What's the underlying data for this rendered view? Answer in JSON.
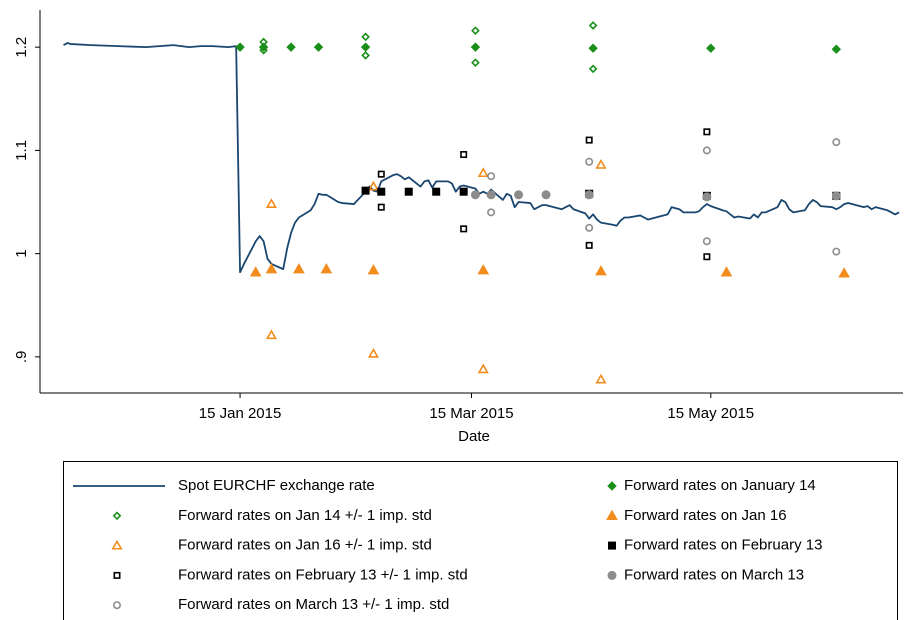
{
  "chart_data": {
    "type": "line",
    "x_label": "Date",
    "xlim": [
      "2014-11-25",
      "2015-07-03"
    ],
    "xticks": [
      {
        "value": "2015-01-15",
        "label": "15 Jan 2015"
      },
      {
        "value": "2015-03-15",
        "label": "15 Mar 2015"
      },
      {
        "value": "2015-05-15",
        "label": "15 May 2015"
      }
    ],
    "ylim": [
      0.865,
      1.236
    ],
    "yticks": [
      {
        "value": 0.9,
        "label": ".9"
      },
      1,
      1.1,
      1.2
    ],
    "series": [
      {
        "name": "Spot EURCHF exchange rate",
        "type": "line",
        "color": "#1a476f",
        "x": [
          "2014-12-01",
          "2014-12-02",
          "2014-12-03",
          "2014-12-08",
          "2014-12-15",
          "2014-12-22",
          "2014-12-29",
          "2015-01-02",
          "2015-01-05",
          "2015-01-08",
          "2015-01-12",
          "2015-01-14",
          "2015-01-15",
          "2015-01-16",
          "2015-01-19",
          "2015-01-20",
          "2015-01-21",
          "2015-01-22",
          "2015-01-23",
          "2015-01-26",
          "2015-01-27",
          "2015-01-28",
          "2015-01-29",
          "2015-01-30",
          "2015-02-02",
          "2015-02-03",
          "2015-02-04",
          "2015-02-05",
          "2015-02-06",
          "2015-02-09",
          "2015-02-10",
          "2015-02-13",
          "2015-02-16",
          "2015-02-17",
          "2015-02-18",
          "2015-02-19",
          "2015-02-20",
          "2015-02-23",
          "2015-02-24",
          "2015-02-25",
          "2015-02-26",
          "2015-02-27",
          "2015-03-02",
          "2015-03-03",
          "2015-03-04",
          "2015-03-05",
          "2015-03-06",
          "2015-03-09",
          "2015-03-10",
          "2015-03-11",
          "2015-03-12",
          "2015-03-13",
          "2015-03-16",
          "2015-03-17",
          "2015-03-18",
          "2015-03-19",
          "2015-03-20",
          "2015-03-23",
          "2015-03-24",
          "2015-03-25",
          "2015-03-26",
          "2015-03-27",
          "2015-03-30",
          "2015-03-31",
          "2015-04-01",
          "2015-04-02",
          "2015-04-03",
          "2015-04-07",
          "2015-04-08",
          "2015-04-09",
          "2015-04-10",
          "2015-04-13",
          "2015-04-14",
          "2015-04-15",
          "2015-04-16",
          "2015-04-17",
          "2015-04-20",
          "2015-04-21",
          "2015-04-22",
          "2015-04-23",
          "2015-04-24",
          "2015-04-27",
          "2015-04-28",
          "2015-04-29",
          "2015-04-30",
          "2015-05-04",
          "2015-05-05",
          "2015-05-06",
          "2015-05-07",
          "2015-05-08",
          "2015-05-11",
          "2015-05-12",
          "2015-05-13",
          "2015-05-14",
          "2015-05-15",
          "2015-05-18",
          "2015-05-19",
          "2015-05-20",
          "2015-05-21",
          "2015-05-22",
          "2015-05-25",
          "2015-05-26",
          "2015-05-27",
          "2015-05-28",
          "2015-05-29",
          "2015-06-01",
          "2015-06-02",
          "2015-06-03",
          "2015-06-04",
          "2015-06-05",
          "2015-06-08",
          "2015-06-09",
          "2015-06-10",
          "2015-06-11",
          "2015-06-12",
          "2015-06-15",
          "2015-06-16",
          "2015-06-17",
          "2015-06-18",
          "2015-06-19",
          "2015-06-22",
          "2015-06-23",
          "2015-06-24",
          "2015-06-25",
          "2015-06-26",
          "2015-06-29",
          "2015-06-30",
          "2015-07-01",
          "2015-07-02"
        ],
        "values": [
          1.202,
          1.204,
          1.203,
          1.202,
          1.201,
          1.2,
          1.202,
          1.2,
          1.201,
          1.201,
          1.2,
          1.201,
          0.982,
          0.99,
          1.012,
          1.017,
          1.012,
          0.995,
          0.99,
          0.985,
          1.005,
          1.02,
          1.03,
          1.035,
          1.042,
          1.048,
          1.058,
          1.057,
          1.057,
          1.05,
          1.049,
          1.048,
          1.06,
          1.065,
          1.061,
          1.06,
          1.07,
          1.076,
          1.077,
          1.075,
          1.072,
          1.074,
          1.065,
          1.07,
          1.071,
          1.064,
          1.07,
          1.07,
          1.068,
          1.06,
          1.065,
          1.066,
          1.063,
          1.058,
          1.06,
          1.058,
          1.062,
          1.052,
          1.058,
          1.056,
          1.045,
          1.05,
          1.049,
          1.043,
          1.045,
          1.047,
          1.047,
          1.043,
          1.045,
          1.047,
          1.043,
          1.039,
          1.034,
          1.038,
          1.033,
          1.03,
          1.028,
          1.027,
          1.032,
          1.035,
          1.035,
          1.037,
          1.035,
          1.033,
          1.034,
          1.038,
          1.045,
          1.044,
          1.043,
          1.04,
          1.04,
          1.041,
          1.045,
          1.048,
          1.046,
          1.042,
          1.041,
          1.038,
          1.035,
          1.036,
          1.034,
          1.038,
          1.035,
          1.04,
          1.04,
          1.045,
          1.052,
          1.05,
          1.043,
          1.04,
          1.042,
          1.048,
          1.052,
          1.05,
          1.046,
          1.045,
          1.043,
          1.045,
          1.048,
          1.049,
          1.046,
          1.045,
          1.046,
          1.043,
          1.045,
          1.042,
          1.04,
          1.038,
          1.04
        ]
      },
      {
        "name": "Forward rates on January 14",
        "type": "scatter",
        "marker": "diamond",
        "filled": true,
        "color": "#1a8f1a",
        "x": [
          "2015-01-15",
          "2015-01-21",
          "2015-01-28",
          "2015-02-04",
          "2015-02-16",
          "2015-03-16",
          "2015-04-15",
          "2015-05-15",
          "2015-06-16"
        ],
        "values": [
          1.2,
          1.2,
          1.2,
          1.2,
          1.2,
          1.2,
          1.199,
          1.199,
          1.198
        ]
      },
      {
        "name": "Forward rates on Jan 14 +/- 1 imp. std",
        "type": "scatter",
        "marker": "diamond",
        "filled": false,
        "color": "#1a8f1a",
        "x": [
          "2015-01-21",
          "2015-01-21",
          "2015-02-16",
          "2015-02-16",
          "2015-03-16",
          "2015-03-16",
          "2015-04-15",
          "2015-04-15"
        ],
        "values": [
          1.205,
          1.197,
          1.21,
          1.192,
          1.216,
          1.185,
          1.221,
          1.179
        ]
      },
      {
        "name": "Forward rates on Jan 16",
        "type": "scatter",
        "marker": "triangle",
        "filled": true,
        "color": "#f28c1c",
        "x": [
          "2015-01-19",
          "2015-01-23",
          "2015-01-30",
          "2015-02-06",
          "2015-02-18",
          "2015-03-18",
          "2015-04-17",
          "2015-05-19",
          "2015-06-18"
        ],
        "values": [
          0.982,
          0.985,
          0.985,
          0.985,
          0.984,
          0.984,
          0.983,
          0.982,
          0.981
        ]
      },
      {
        "name": "Forward rates on Jan 16 +/- 1 imp. std",
        "type": "scatter",
        "marker": "triangle",
        "filled": false,
        "color": "#f28c1c",
        "x": [
          "2015-01-23",
          "2015-01-23",
          "2015-02-18",
          "2015-02-18",
          "2015-03-18",
          "2015-03-18",
          "2015-04-17",
          "2015-04-17"
        ],
        "values": [
          1.048,
          0.921,
          1.065,
          0.903,
          1.078,
          0.888,
          1.086,
          0.878
        ]
      },
      {
        "name": "Forward rates on February 13",
        "type": "scatter",
        "marker": "square",
        "filled": true,
        "color": "#000000",
        "x": [
          "2015-02-16",
          "2015-02-20",
          "2015-02-27",
          "2015-03-06",
          "2015-03-13",
          "2015-04-14",
          "2015-05-14",
          "2015-06-16"
        ],
        "values": [
          1.061,
          1.06,
          1.06,
          1.06,
          1.06,
          1.058,
          1.056,
          1.056
        ]
      },
      {
        "name": "Forward rates on February 13 +/- 1 imp. std",
        "type": "scatter",
        "marker": "square",
        "filled": false,
        "color": "#000000",
        "x": [
          "2015-02-20",
          "2015-02-20",
          "2015-03-13",
          "2015-03-13",
          "2015-04-14",
          "2015-04-14",
          "2015-05-14",
          "2015-05-14"
        ],
        "values": [
          1.077,
          1.045,
          1.096,
          1.024,
          1.11,
          1.008,
          1.118,
          0.997
        ]
      },
      {
        "name": "Forward rates on March 13",
        "type": "scatter",
        "marker": "circle",
        "filled": true,
        "color": "#8c8c8c",
        "x": [
          "2015-03-16",
          "2015-03-20",
          "2015-03-27",
          "2015-04-03",
          "2015-04-14",
          "2015-05-14",
          "2015-06-16"
        ],
        "values": [
          1.057,
          1.057,
          1.057,
          1.057,
          1.057,
          1.055,
          1.056
        ]
      },
      {
        "name": "Forward rates on March 13 +/- 1 imp. std",
        "type": "scatter",
        "marker": "circle",
        "filled": false,
        "color": "#8c8c8c",
        "x": [
          "2015-03-20",
          "2015-03-20",
          "2015-04-14",
          "2015-04-14",
          "2015-05-14",
          "2015-05-14",
          "2015-06-16",
          "2015-06-16"
        ],
        "values": [
          1.075,
          1.04,
          1.089,
          1.025,
          1.1,
          1.012,
          1.108,
          1.002
        ]
      }
    ]
  }
}
